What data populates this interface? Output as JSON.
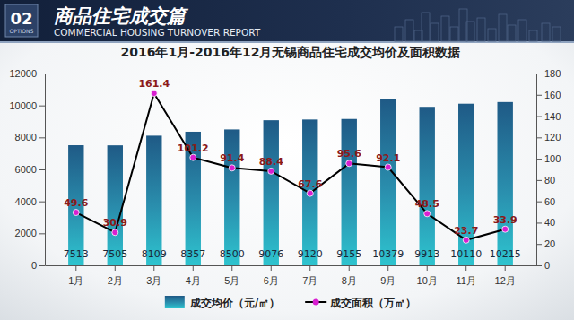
{
  "header": {
    "badge_number": "02",
    "badge_label": "OPTIONS",
    "title": "商品住宅成交篇",
    "subtitle": "COMMERCIAL HOUSING TURNOVER REPORT"
  },
  "chart_data": {
    "type": "bar",
    "title": "2016年1月-2016年12月无锡商品住宅成交均价及面积数据",
    "categories": [
      "1月",
      "2月",
      "3月",
      "4月",
      "5月",
      "6月",
      "7月",
      "8月",
      "9月",
      "10月",
      "11月",
      "12月"
    ],
    "series": [
      {
        "name": "成交均价（元/㎡）",
        "type": "bar",
        "color": "#1f5a86",
        "values": [
          7513,
          7505,
          8109,
          8357,
          8500,
          9076,
          9120,
          9155,
          10379,
          9913,
          10110,
          10215
        ]
      },
      {
        "name": "成交面积（万㎡）",
        "type": "line",
        "axis": "y2",
        "color": "#000000",
        "marker": "circle",
        "values": [
          49.6,
          30.9,
          161.4,
          101.2,
          91.4,
          88.4,
          67.6,
          95.6,
          92.1,
          48.5,
          23.7,
          33.9
        ]
      }
    ],
    "ylim": [
      0,
      12000
    ],
    "yticks": [
      0,
      2000,
      4000,
      6000,
      8000,
      10000,
      12000
    ],
    "y2lim": [
      0,
      180
    ],
    "y2ticks": [
      0,
      20,
      40,
      60,
      80,
      100,
      120,
      140,
      160,
      180
    ],
    "grid": false,
    "legend": "bottom",
    "data_labels": true
  }
}
